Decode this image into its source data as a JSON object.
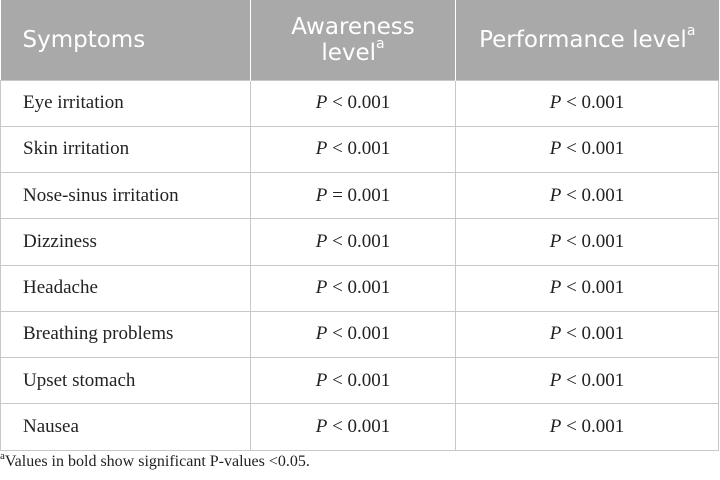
{
  "table": {
    "headers": {
      "symptoms": "Symptoms",
      "awareness": "Awareness level",
      "awareness_sup": "a",
      "performance": "Performance level",
      "performance_sup": "a"
    },
    "rows": [
      {
        "symptom": "Eye irritation",
        "awareness": "P < 0.001",
        "performance": "P < 0.001"
      },
      {
        "symptom": "Skin irritation",
        "awareness": "P < 0.001",
        "performance": "P < 0.001"
      },
      {
        "symptom": "Nose-sinus irritation",
        "awareness": "P = 0.001",
        "performance": "P < 0.001"
      },
      {
        "symptom": "Dizziness",
        "awareness": "P < 0.001",
        "performance": "P < 0.001"
      },
      {
        "symptom": "Headache",
        "awareness": "P < 0.001",
        "performance": "P < 0.001"
      },
      {
        "symptom": "Breathing problems",
        "awareness": "P < 0.001",
        "performance": "P < 0.001"
      },
      {
        "symptom": "Upset stomach",
        "awareness": "P < 0.001",
        "performance": "P < 0.001"
      },
      {
        "symptom": "Nausea",
        "awareness": "P < 0.001",
        "performance": "P < 0.001"
      }
    ]
  },
  "footnote": {
    "marker": "a",
    "text": "Values in bold show significant P-values <0.05."
  },
  "colors": {
    "header_bg": "#a9a9a9",
    "header_text": "#ffffff",
    "grid": "#c8c8c8"
  }
}
